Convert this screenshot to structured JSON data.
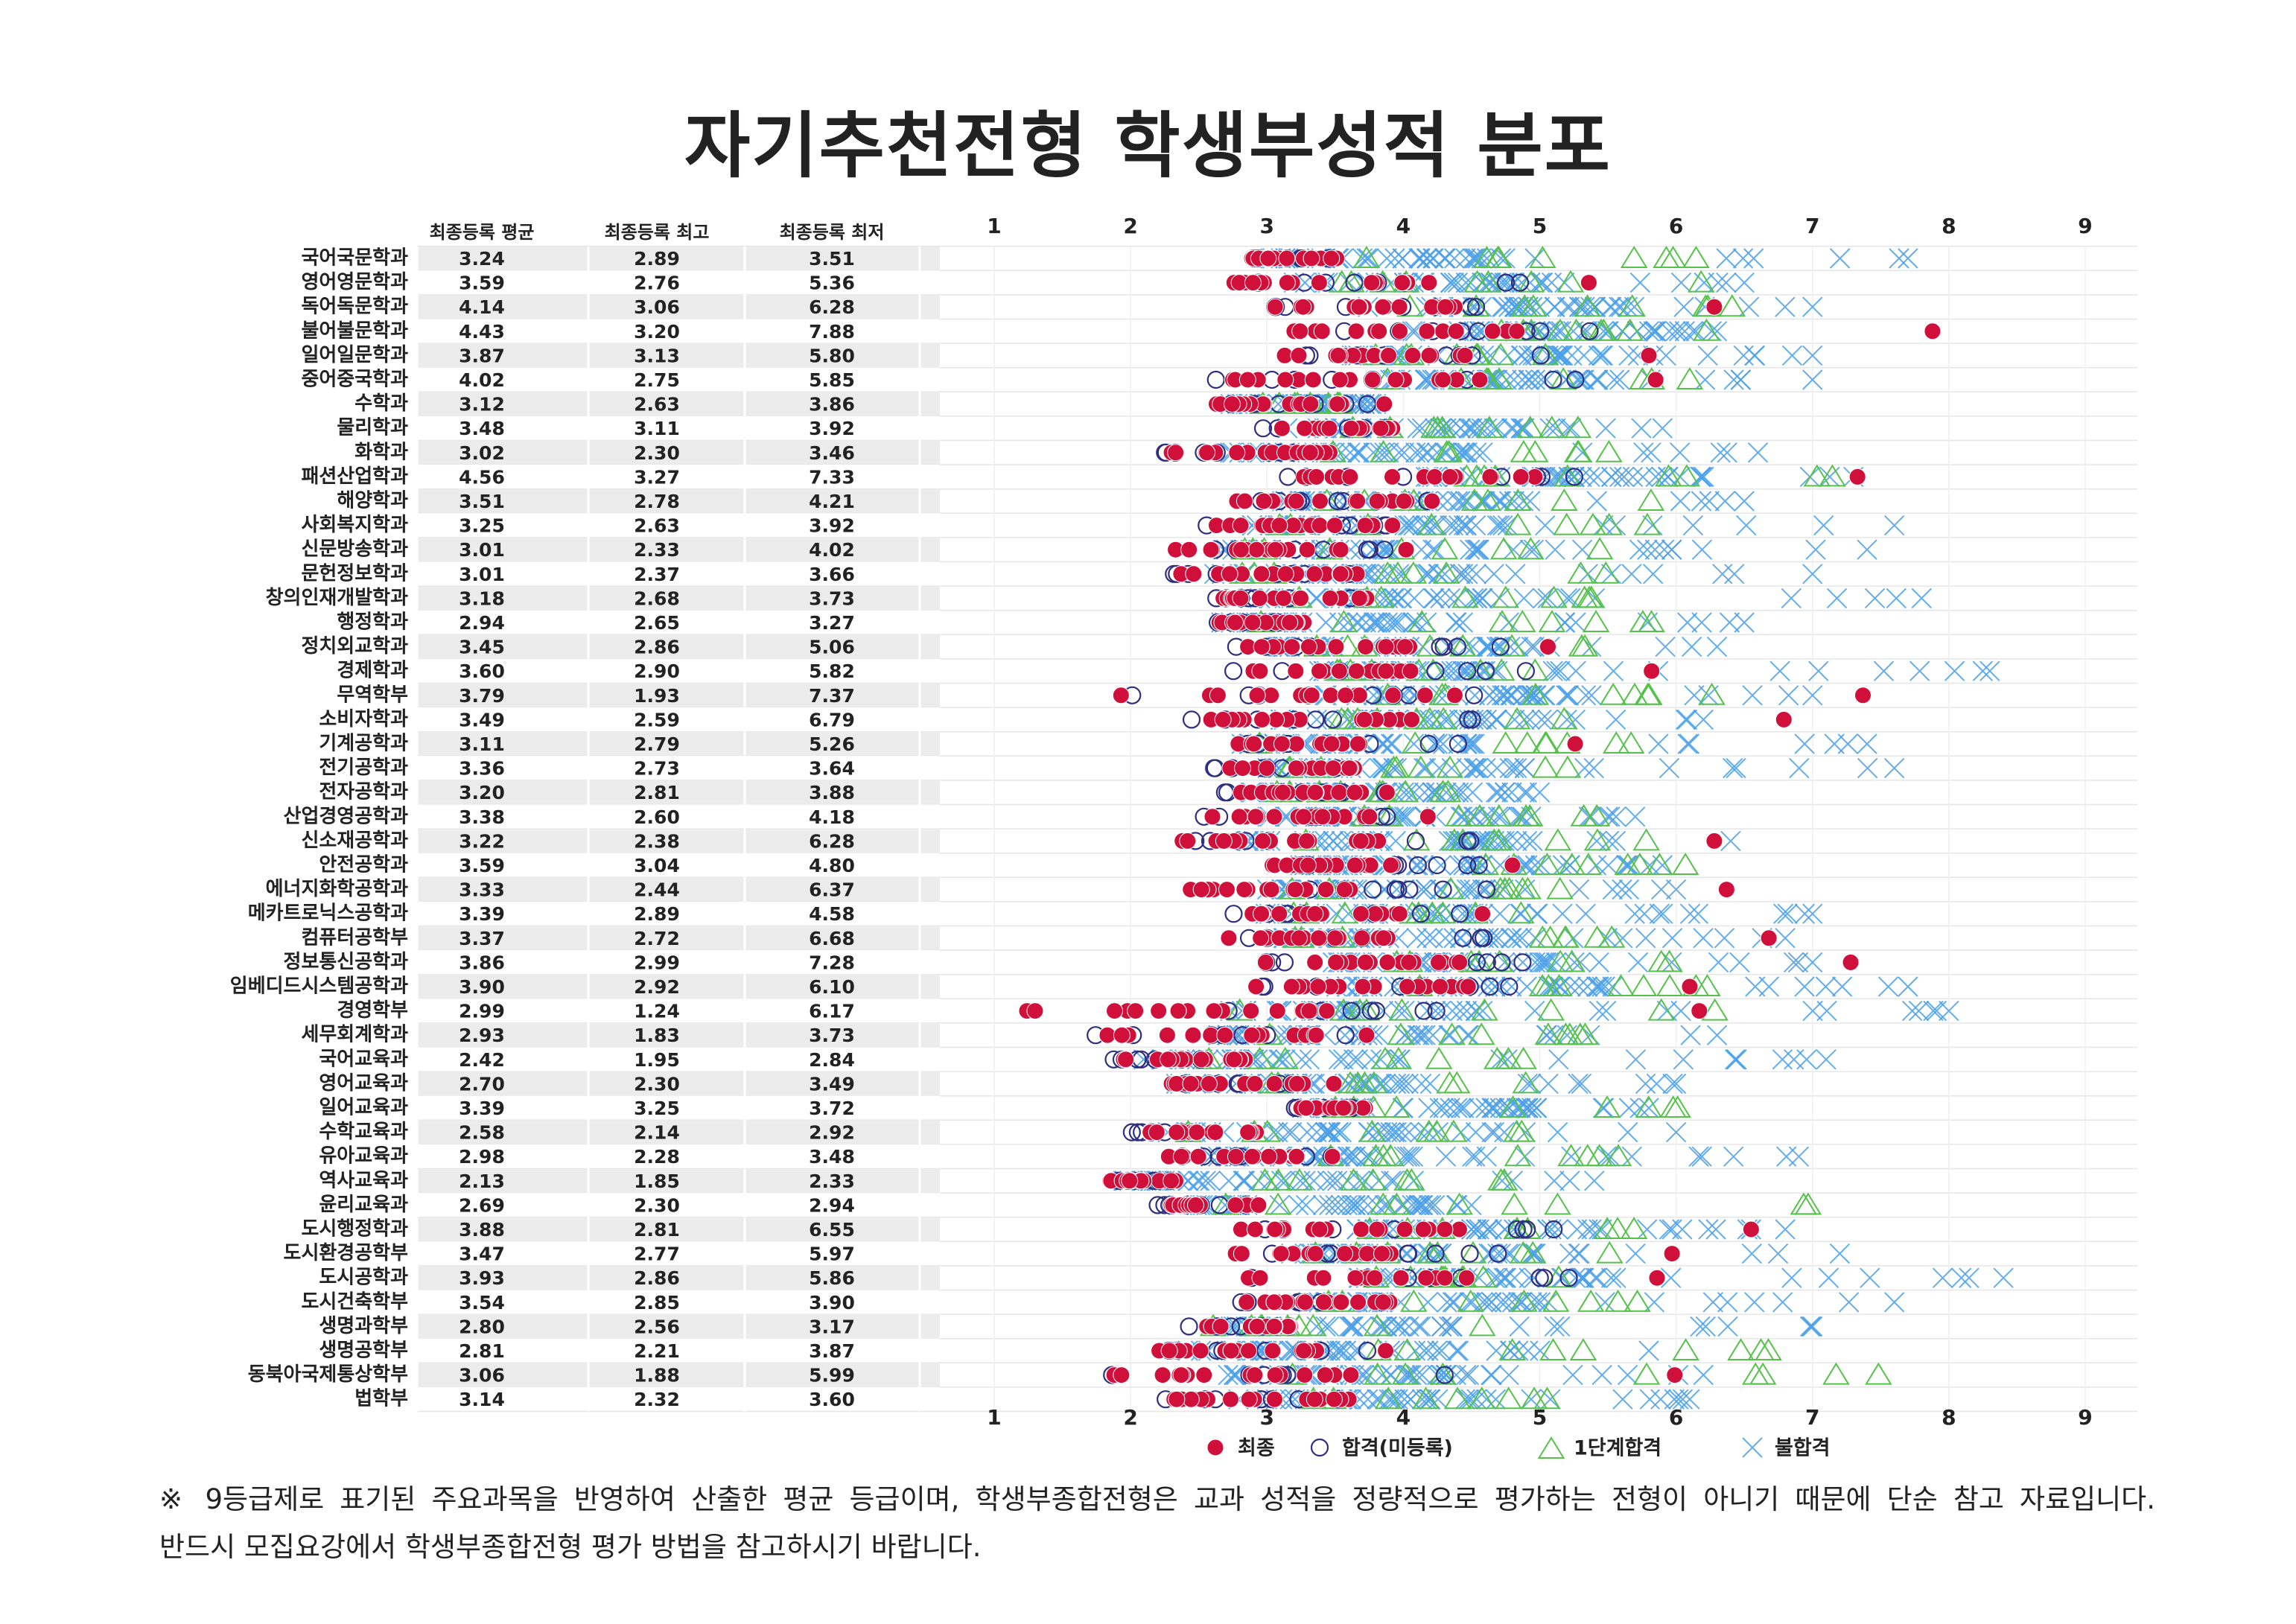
{
  "title": "자기추천전형 학생부성적 분포",
  "table_headers": [
    "최종등록 평균",
    "최종등록 최고",
    "최종등록 최저"
  ],
  "colors": {
    "final": "#d0103a",
    "admitted": "#2f2f7f",
    "first_stage": "#55c24a",
    "rejected": "#4a9fe8"
  },
  "chart_data": {
    "type": "scatter",
    "title": "자기추천전형 학생부성적 분포",
    "x_ticks": [
      1,
      2,
      3,
      4,
      5,
      6,
      7,
      8,
      9
    ],
    "xlim": [
      0.6,
      9.4
    ],
    "grid": true,
    "legend_position": "bottom",
    "series": [
      {
        "name": "최종",
        "marker": "filled-circle"
      },
      {
        "name": "합격(미등록)",
        "marker": "open-circle"
      },
      {
        "name": "1단계합격",
        "marker": "open-triangle"
      },
      {
        "name": "불합격",
        "marker": "x"
      }
    ],
    "categories": [
      "국어국문학과",
      "영어영문학과",
      "독어독문학과",
      "불어불문학과",
      "일어일문학과",
      "중어중국학과",
      "수학과",
      "물리학과",
      "화학과",
      "패션산업학과",
      "해양학과",
      "사회복지학과",
      "신문방송학과",
      "문헌정보학과",
      "창의인재개발학과",
      "행정학과",
      "정치외교학과",
      "경제학과",
      "무역학부",
      "소비자학과",
      "기계공학과",
      "전기공학과",
      "전자공학과",
      "산업경영공학과",
      "신소재공학과",
      "안전공학과",
      "에너지화학공학과",
      "메카트로닉스공학과",
      "컴퓨터공학부",
      "정보통신공학과",
      "임베디드시스템공학과",
      "경영학부",
      "세무회계학과",
      "국어교육과",
      "영어교육과",
      "일어교육과",
      "수학교육과",
      "유아교육과",
      "역사교육과",
      "윤리교육과",
      "도시행정학과",
      "도시환경공학부",
      "도시공학과",
      "도시건축학부",
      "생명과학부",
      "생명공학부",
      "동북아국제통상학부",
      "법학부"
    ],
    "table": {
      "avg": [
        "3.24",
        "3.59",
        "4.14",
        "4.43",
        "3.87",
        "4.02",
        "3.12",
        "3.48",
        "3.02",
        "4.56",
        "3.51",
        "3.25",
        "3.01",
        "3.01",
        "3.18",
        "2.94",
        "3.45",
        "3.60",
        "3.79",
        "3.49",
        "3.11",
        "3.36",
        "3.20",
        "3.38",
        "3.22",
        "3.59",
        "3.33",
        "3.39",
        "3.37",
        "3.86",
        "3.90",
        "2.99",
        "2.93",
        "2.42",
        "2.70",
        "3.39",
        "2.58",
        "2.98",
        "2.13",
        "2.69",
        "3.88",
        "3.47",
        "3.93",
        "3.54",
        "2.80",
        "2.81",
        "3.06",
        "3.14"
      ],
      "max": [
        "2.89",
        "2.76",
        "3.06",
        "3.20",
        "3.13",
        "2.75",
        "2.63",
        "3.11",
        "2.30",
        "3.27",
        "2.78",
        "2.63",
        "2.33",
        "2.37",
        "2.68",
        "2.65",
        "2.86",
        "2.90",
        "1.93",
        "2.59",
        "2.79",
        "2.73",
        "2.81",
        "2.60",
        "2.38",
        "3.04",
        "2.44",
        "2.89",
        "2.72",
        "2.99",
        "2.92",
        "1.24",
        "1.83",
        "1.95",
        "2.30",
        "3.25",
        "2.14",
        "2.28",
        "1.85",
        "2.30",
        "2.81",
        "2.77",
        "2.86",
        "2.85",
        "2.56",
        "2.21",
        "1.88",
        "2.32"
      ],
      "min": [
        "3.51",
        "5.36",
        "6.28",
        "7.88",
        "5.80",
        "5.85",
        "3.86",
        "3.92",
        "3.46",
        "7.33",
        "4.21",
        "3.92",
        "4.02",
        "3.66",
        "3.73",
        "3.27",
        "5.06",
        "5.82",
        "7.37",
        "6.79",
        "5.26",
        "3.64",
        "3.88",
        "4.18",
        "6.28",
        "4.80",
        "6.37",
        "4.58",
        "6.68",
        "7.28",
        "6.10",
        "6.17",
        "3.73",
        "2.84",
        "3.49",
        "3.72",
        "2.92",
        "3.48",
        "2.33",
        "2.94",
        "6.55",
        "5.97",
        "5.86",
        "3.90",
        "3.17",
        "3.87",
        "5.99",
        "3.60"
      ]
    },
    "rejected_upper": [
      7.7,
      6.5,
      7.0,
      6.3,
      7.0,
      7.0,
      3.8,
      5.9,
      6.6,
      7.3,
      6.5,
      7.6,
      7.4,
      7.0,
      7.8,
      6.5,
      6.3,
      8.3,
      7.0,
      6.2,
      7.4,
      7.6,
      5.0,
      5.7,
      6.4,
      5.9,
      6.0,
      7.0,
      6.8,
      7.0,
      7.7,
      8.0,
      6.3,
      7.1,
      6.0,
      5.8,
      6.0,
      6.9,
      5.4,
      4.5,
      6.8,
      7.2,
      8.4,
      7.6,
      7.0,
      5.8,
      6.2,
      6.1
    ],
    "first_stage_upper": [
      6.2,
      6.4,
      6.9,
      6.3,
      5.4,
      6.1,
      3.6,
      5.3,
      5.6,
      7.4,
      6.1,
      5.8,
      6.0,
      5.7,
      5.6,
      6.0,
      5.7,
      5.3,
      6.3,
      5.6,
      5.7,
      5.4,
      4.5,
      5.8,
      6.3,
      6.8,
      5.2,
      4.9,
      5.7,
      6.0,
      6.3,
      6.3,
      5.6,
      5.0,
      5.7,
      6.1,
      5.5,
      5.6,
      4.8,
      7.4,
      5.8,
      5.6,
      5.4,
      5.8,
      5.3,
      6.8,
      7.5,
      5.4
    ]
  },
  "legend": [
    {
      "label": "최종",
      "marker": "filled-circle"
    },
    {
      "label": "합격(미등록)",
      "marker": "open-circle"
    },
    {
      "label": "1단계합격",
      "marker": "open-triangle"
    },
    {
      "label": "불합격",
      "marker": "x"
    }
  ],
  "footnote": {
    "line1": "※ 9등급제로 표기된 주요과목을 반영하여 산출한 평균 등급이며, 학생부종합전형은 교과 성적을 정량적으로 평가하는 전형이 아니기 때문에 단순 참고 자료입니다.",
    "line2": "반드시 모집요강에서 학생부종합전형 평가 방법을 참고하시기 바랍니다."
  }
}
